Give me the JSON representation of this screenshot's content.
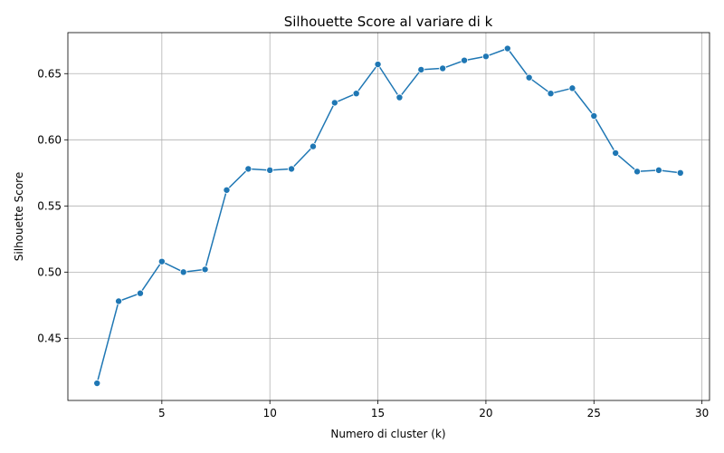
{
  "chart_data": {
    "type": "line",
    "title": "Silhouette Score al variare di k",
    "xlabel": "Numero di cluster (k)",
    "ylabel": "Silhouette Score",
    "xlim": [
      0.65,
      30.35
    ],
    "ylim": [
      0.403,
      0.681
    ],
    "xticks": [
      5,
      10,
      15,
      20,
      25,
      30
    ],
    "yticks": [
      0.45,
      0.5,
      0.55,
      0.6,
      0.65
    ],
    "ytick_labels": [
      "0.45",
      "0.50",
      "0.55",
      "0.60",
      "0.65"
    ],
    "xtick_labels": [
      "5",
      "10",
      "15",
      "20",
      "25",
      "30"
    ],
    "grid": true,
    "series": [
      {
        "color": "#1f77b4",
        "marker": "circle",
        "x": [
          2,
          3,
          4,
          5,
          6,
          7,
          8,
          9,
          10,
          11,
          12,
          13,
          14,
          15,
          16,
          17,
          18,
          19,
          20,
          21,
          22,
          23,
          24,
          25,
          26,
          27,
          28,
          29
        ],
        "y": [
          0.416,
          0.478,
          0.484,
          0.508,
          0.5,
          0.502,
          0.562,
          0.578,
          0.577,
          0.578,
          0.595,
          0.628,
          0.635,
          0.657,
          0.632,
          0.653,
          0.654,
          0.66,
          0.663,
          0.669,
          0.647,
          0.635,
          0.639,
          0.618,
          0.59,
          0.576,
          0.577,
          0.575
        ]
      }
    ]
  }
}
